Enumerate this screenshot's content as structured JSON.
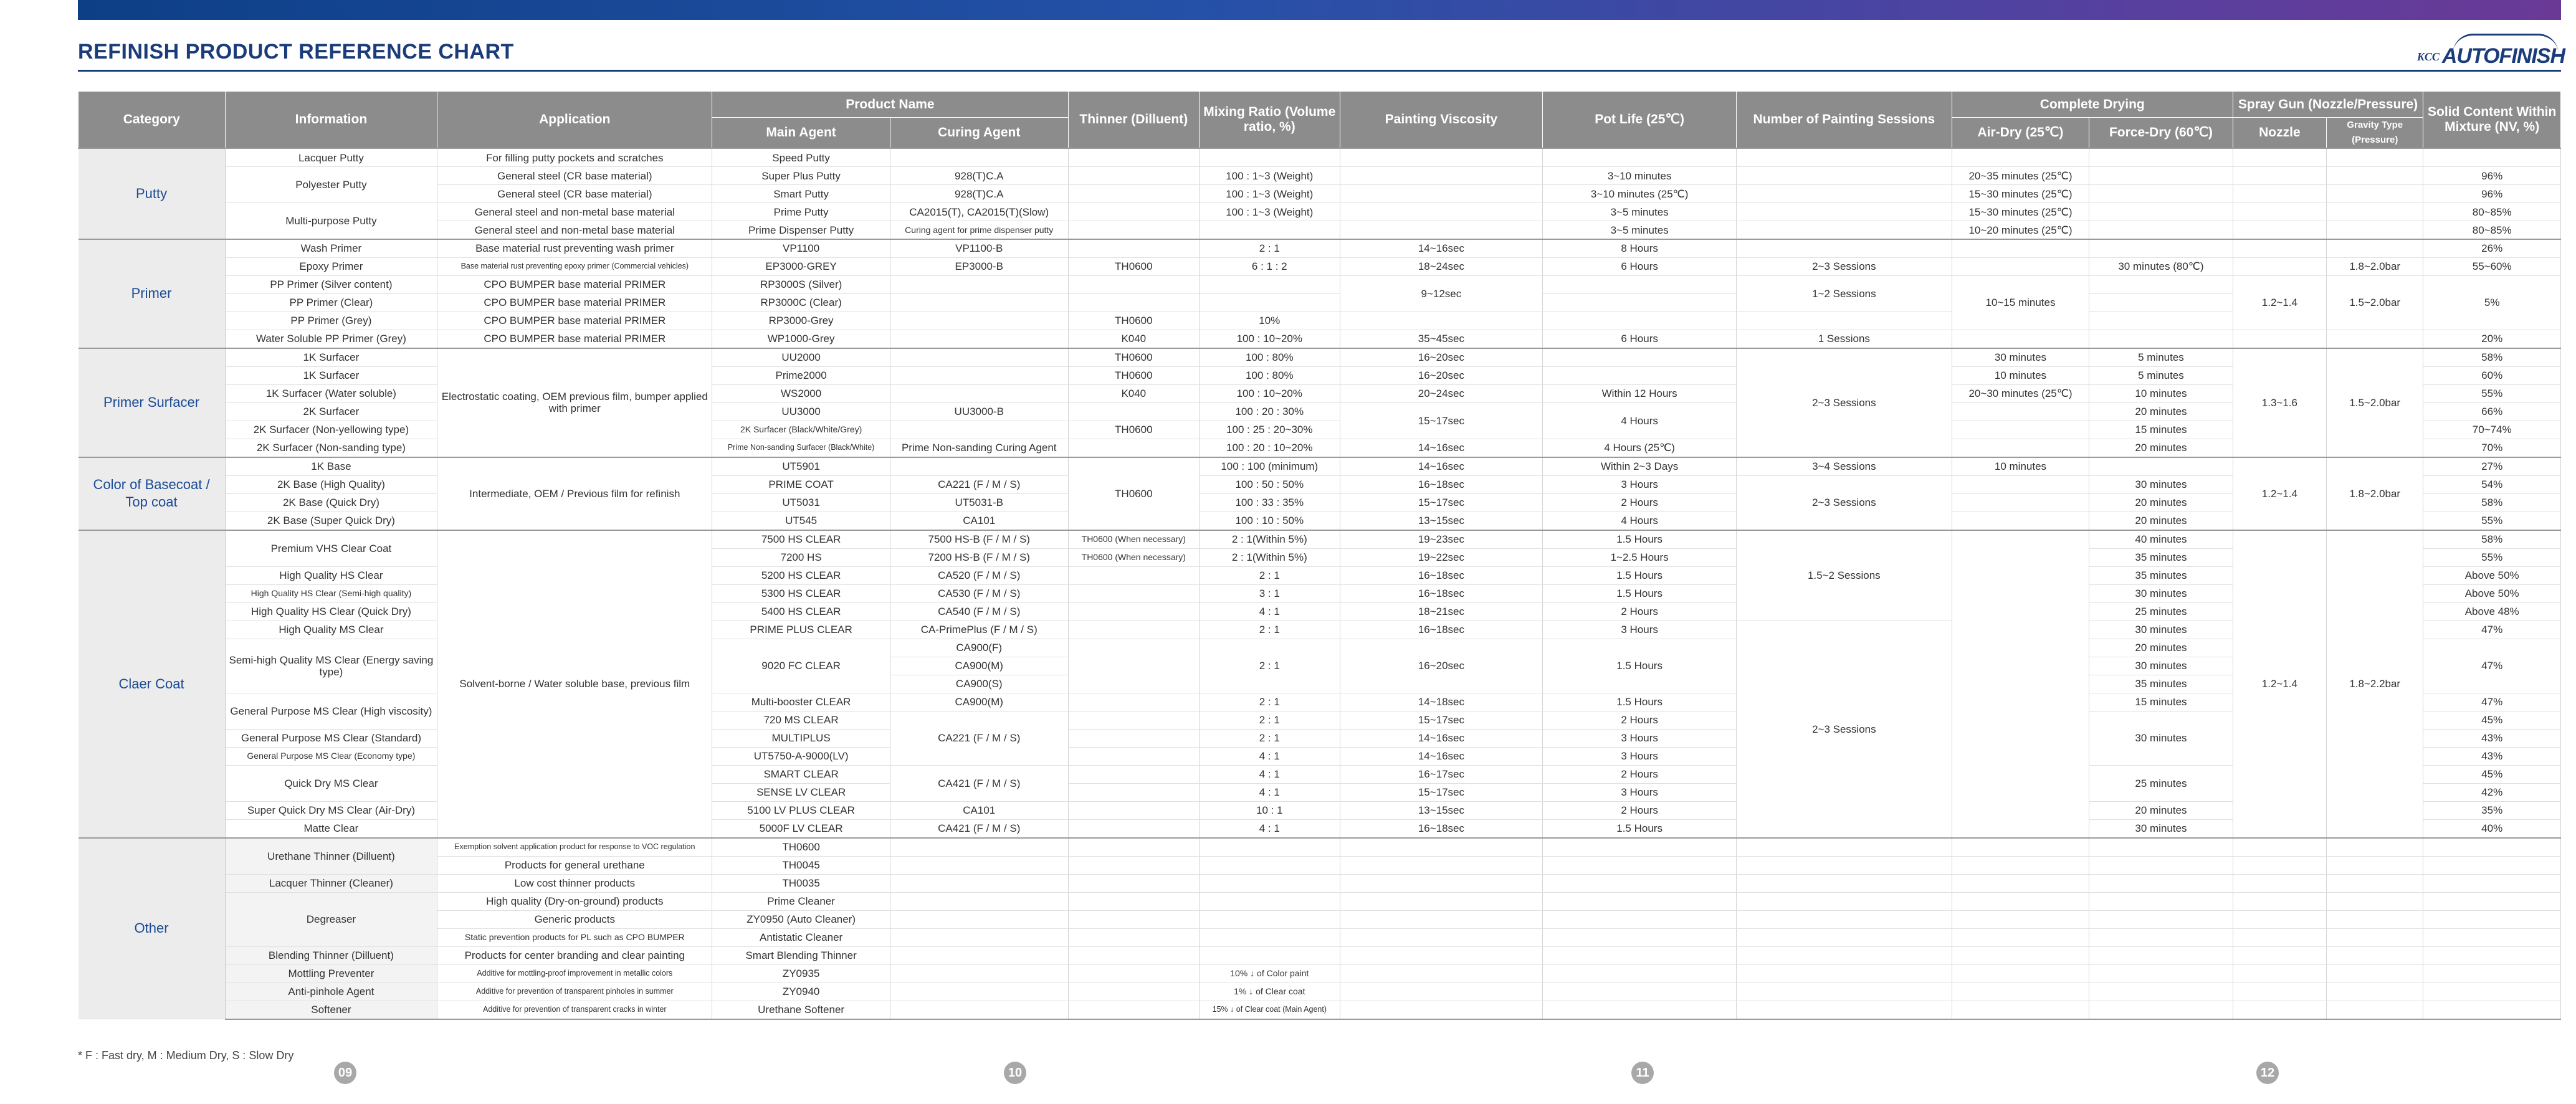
{
  "header": {
    "title": "REFINISH PRODUCT REFERENCE CHART",
    "logo_small": "KCC",
    "logo_main": "AUTOFINISH"
  },
  "columns": {
    "category": "Category",
    "information": "Information",
    "application": "Application",
    "product_name": "Product Name",
    "main_agent": "Main Agent",
    "curing_agent": "Curing Agent",
    "thinner": "Thinner (Dilluent)",
    "mixing_ratio": "Mixing Ratio (Volume ratio, %)",
    "viscosity": "Painting Viscosity",
    "pot_life": "Pot Life (25℃)",
    "sessions": "Number of Painting Sessions",
    "complete_drying": "Complete Drying",
    "air_dry": "Air-Dry (25℃)",
    "force_dry": "Force-Dry (60℃)",
    "spray_gun": "Spray Gun (Nozzle/Pressure)",
    "nozzle": "Nozzle",
    "gravity": "Gravity Type (Pressure)",
    "solid": "Solid Content Within Mixture (NV, %)"
  },
  "categories": {
    "putty": "Putty",
    "primer": "Primer",
    "surfacer": "Primer Surfacer",
    "basecoat": "Color  of Basecoat / Top coat",
    "clear": "Claer Coat",
    "other": "Other"
  },
  "putty": {
    "info": [
      "Lacquer Putty",
      "Polyester Putty",
      "Multi-purpose Putty"
    ],
    "app": [
      "For filling putty pockets and scratches",
      "General steel (CR base material)",
      "General steel (CR base material)",
      "General steel and non-metal base material",
      "General steel and non-metal base material"
    ],
    "main": [
      "Speed Putty",
      "Super Plus Putty",
      "Smart Putty",
      "Prime Putty",
      "Prime Dispenser Putty"
    ],
    "curing": [
      "",
      "928(T)C.A",
      "928(T)C.A",
      "CA2015(T), CA2015(T)(Slow)",
      "Curing agent for prime dispenser putty"
    ],
    "mix": [
      "",
      "100 : 1~3 (Weight)",
      "100 : 1~3 (Weight)",
      "100 : 1~3 (Weight)",
      ""
    ],
    "pot": [
      "",
      "3~10 minutes",
      "3~10 minutes (25℃)",
      "3~5 minutes",
      "3~5 minutes"
    ],
    "air": [
      "",
      "20~35 minutes  (25℃)",
      "15~30 minutes  (25℃)",
      "15~30 minutes  (25℃)",
      "10~20 minutes  (25℃)"
    ],
    "solid": [
      "",
      "96%",
      "96%",
      "80~85%",
      "80~85%"
    ]
  },
  "primer": {
    "info": [
      "Wash Primer",
      "Epoxy Primer",
      "PP Primer (Silver content)",
      "PP Primer (Clear)",
      "PP Primer (Grey)",
      "Water Soluble PP Primer (Grey)"
    ],
    "app": [
      "Base material rust preventing wash primer",
      "Base material rust preventing epoxy primer (Commercial vehicles)",
      "CPO BUMPER base material PRIMER",
      "CPO BUMPER base material PRIMER",
      "CPO BUMPER base material PRIMER",
      "CPO BUMPER base material PRIMER"
    ],
    "main": [
      "VP1100",
      "EP3000-GREY",
      "RP3000S (Silver)",
      "RP3000C (Clear)",
      "RP3000-Grey",
      "WP1000-Grey"
    ],
    "curing": [
      "VP1100-B",
      "EP3000-B",
      "",
      "",
      "",
      ""
    ],
    "thinner": [
      "",
      "TH0600",
      "",
      "",
      "TH0600",
      "K040"
    ],
    "mix": [
      "2 : 1",
      "6 : 1 : 2",
      "",
      "",
      "10%",
      "100 : 10~20%"
    ],
    "visc": [
      "14~16sec",
      "18~24sec",
      "9~12sec",
      "35~45sec"
    ],
    "pot": [
      "8 Hours",
      "6 Hours",
      "6 Hours"
    ],
    "sessions": [
      "2~3 Sessions",
      "1~2 Sessions",
      "1 Sessions"
    ],
    "air": "10~15 minutes",
    "force": "30 minutes  (80℃)",
    "nozzle": "1.2~1.4",
    "gravity": [
      "1.8~2.0bar",
      "1.5~2.0bar"
    ],
    "solid": [
      "26%",
      "55~60%",
      "5%",
      "20%"
    ]
  },
  "surfacer": {
    "info": [
      "1K Surfacer",
      "1K Surfacer",
      "1K Surfacer (Water soluble)",
      "2K Surfacer",
      "2K Surfacer (Non-yellowing type)",
      "2K Surfacer (Non-sanding type)"
    ],
    "app": "Electrostatic coating, OEM previous film, bumper applied with primer",
    "main": [
      "UU2000",
      "Prime2000",
      "WS2000",
      "UU3000",
      "2K Surfacer (Black/White/Grey)",
      "Prime Non-sanding Surfacer (Black/White)"
    ],
    "curing": [
      "",
      "",
      "",
      "UU3000-B",
      "",
      "Prime Non-sanding Curing Agent"
    ],
    "thinner": [
      "TH0600",
      "TH0600",
      "K040",
      "",
      "TH0600",
      ""
    ],
    "mix": [
      "100 : 80%",
      "100 : 80%",
      "100 : 10~20%",
      "100 : 20 : 30%",
      "100 : 25 : 20~30%",
      "100 : 20 : 10~20%"
    ],
    "visc": [
      "16~20sec",
      "16~20sec",
      "20~24sec",
      "15~17sec",
      "14~16sec"
    ],
    "pot": [
      "Within 12 Hours",
      "4 Hours",
      "4 Hours (25℃)"
    ],
    "sessions": "2~3 Sessions",
    "air": [
      "30  minutes",
      "10  minutes",
      "20~30 minutes  (25℃)"
    ],
    "force": [
      "5 minutes",
      "5 minutes",
      "10 minutes",
      "20 minutes",
      "15 minutes",
      "20 minutes"
    ],
    "nozzle": "1.3~1.6",
    "gravity": "1.5~2.0bar",
    "solid": [
      "58%",
      "60%",
      "55%",
      "66%",
      "70~74%",
      "70%"
    ]
  },
  "basecoat": {
    "info": [
      "1K Base",
      "2K Base (High Quality)",
      "2K Base (Quick Dry)",
      "2K Base (Super Quick Dry)"
    ],
    "app": "Intermediate, OEM / Previous film for refinish",
    "main": [
      "UT5901",
      "PRIME COAT",
      "UT5031",
      "UT545"
    ],
    "curing": [
      "",
      "CA221  (F / M / S)",
      "UT5031-B",
      "CA101"
    ],
    "thinner": "TH0600",
    "mix": [
      "100 : 100 (minimum)",
      "100 : 50 : 50%",
      "100 : 33 : 35%",
      "100 : 10 : 50%"
    ],
    "visc": [
      "14~16sec",
      "16~18sec",
      "15~17sec",
      "13~15sec"
    ],
    "pot": [
      "Within 2~3 Days",
      "3 Hours",
      "2 Hours",
      "4 Hours"
    ],
    "sessions": [
      "3~4 Sessions",
      "2~3 Sessions"
    ],
    "air": "10  minutes",
    "force": [
      "",
      "30 minutes",
      "20 minutes",
      "20 minutes"
    ],
    "nozzle": "1.2~1.4",
    "gravity": "1.8~2.0bar",
    "solid": [
      "27%",
      "54%",
      "58%",
      "55%"
    ]
  },
  "clear": {
    "info": [
      "Premium VHS Clear Coat",
      "High Quality HS Clear",
      "High Quality HS Clear (Semi-high quality)",
      "High Quality HS Clear (Quick Dry)",
      "High Quality MS Clear",
      "Semi-high Quality MS Clear (Energy saving type)",
      "General Purpose MS Clear (High viscosity)",
      "General Purpose MS Clear (Standard)",
      "General Purpose MS Clear (Economy type)",
      "Quick Dry MS Clear",
      "Super Quick Dry MS Clear (Air-Dry)",
      "Matte Clear"
    ],
    "app": "Solvent-borne / Water soluble base, previous film",
    "main": [
      "7500 HS CLEAR",
      "7200 HS",
      "5200 HS CLEAR",
      "5300 HS CLEAR",
      "5400 HS CLEAR",
      "PRIME PLUS  CLEAR",
      "9020 FC CLEAR",
      "Multi-booster CLEAR",
      "720 MS CLEAR",
      "MULTIPLUS",
      "UT5750-A-9000(LV)",
      "SMART CLEAR",
      "SENSE LV CLEAR",
      "5100 LV PLUS CLEAR",
      "5000F LV CLEAR"
    ],
    "curing": [
      "7500 HS-B  (F / M / S)",
      "7200 HS-B  (F / M / S)",
      "CA520  (F / M / S)",
      "CA530  (F / M / S)",
      "CA540  (F / M / S)",
      "CA-PrimePlus  (F / M / S)",
      "CA900(F)",
      "CA900(M)",
      "CA900(S)",
      "CA900(M)",
      "CA221 (F / M / S)",
      "CA421 (F / M / S)",
      "CA101",
      "CA421 (F / M / S)"
    ],
    "thinner": [
      "TH0600 (When necessary)",
      "TH0600 (When necessary)"
    ],
    "mix": [
      "2 : 1(Within 5%)",
      "2 : 1(Within 5%)",
      "2 : 1",
      "3 : 1",
      "4 : 1",
      "2 : 1",
      "2 : 1",
      "2 : 1",
      "2 : 1",
      "2 : 1",
      "4 : 1",
      "4 : 1",
      "4 : 1",
      "10 : 1",
      "4 : 1"
    ],
    "visc": [
      "19~23sec",
      "19~22sec",
      "16~18sec",
      "16~18sec",
      "18~21sec",
      "16~18sec",
      "16~20sec",
      "14~18sec",
      "15~17sec",
      "14~16sec",
      "14~16sec",
      "16~17sec",
      "15~17sec",
      "13~15sec",
      "16~18sec"
    ],
    "pot": [
      "1.5 Hours",
      "1~2.5 Hours",
      "1.5 Hours",
      "1.5 Hours",
      "2 Hours",
      "3 Hours",
      "1.5 Hours",
      "1.5 Hours",
      "2 Hours",
      "3 Hours",
      "3 Hours",
      "2 Hours",
      "3 Hours",
      "2 Hours",
      "1.5 Hours"
    ],
    "sessions": [
      "1.5~2 Sessions",
      "2~3 Sessions"
    ],
    "force": [
      "40 minutes",
      "35 minutes",
      "35 minutes",
      "30 minutes",
      "25 minutes",
      "30 minutes",
      "20 minutes",
      "30 minutes",
      "35 minutes",
      "15 minutes",
      "30 minutes",
      "25 minutes",
      "20 minutes",
      "30 minutes"
    ],
    "nozzle": "1.2~1.4",
    "gravity": "1.8~2.2bar",
    "solid": [
      "58%",
      "55%",
      "Above 50%",
      "Above 50%",
      "Above 48%",
      "47%",
      "47%",
      "47%",
      "45%",
      "43%",
      "43%",
      "45%",
      "42%",
      "35%",
      "40%"
    ]
  },
  "other": {
    "info": [
      "Urethane Thinner (Dilluent)",
      "Lacquer Thinner (Cleaner)",
      "Degreaser",
      "Blending Thinner (Dilluent)",
      "Mottling Preventer",
      "Anti-pinhole Agent",
      "Softener"
    ],
    "app": [
      "Exemption solvent application product for response to VOC regulation",
      "Products for general urethane",
      "Low cost thinner products",
      "High quality (Dry-on-ground) products",
      "Generic products",
      "Static prevention products for PL such as CPO BUMPER",
      "Products for center branding and clear painting",
      "Additive for mottling-proof improvement in metallic colors",
      "Additive for prevention of transparent pinholes in summer",
      "Additive for prevention of transparent cracks in winter"
    ],
    "main": [
      "TH0600",
      "TH0045",
      "TH0035",
      "Prime Cleaner",
      "ZY0950 (Auto Cleaner)",
      "Antistatic Cleaner",
      "Smart Blending Thinner",
      "ZY0935",
      "ZY0940",
      "Urethane Softener"
    ],
    "mix": [
      "10% ↓ of Color paint",
      "1% ↓ of Clear coat",
      "15% ↓ of Clear coat (Main Agent)"
    ]
  },
  "footer": {
    "note": "* F : Fast dry, M : Medium Dry, S : Slow Dry",
    "pages": [
      "09",
      "10",
      "11",
      "12"
    ]
  }
}
